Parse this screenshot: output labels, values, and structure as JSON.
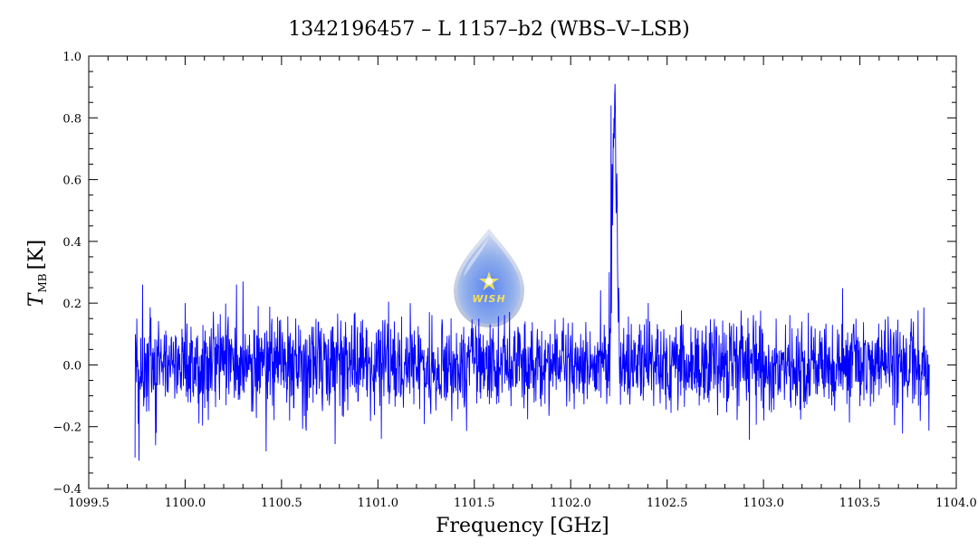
{
  "chart_data": {
    "type": "line",
    "title": "1342196457 – L 1157–b2 (WBS–V–LSB)",
    "xlabel": "Frequency [GHz]",
    "ylabel_main": "T",
    "ylabel_sub": "MB",
    "ylabel_unit": "[K]",
    "xlim": [
      1099.5,
      1104.0
    ],
    "ylim": [
      -0.4,
      1.0
    ],
    "x_ticks": [
      "1099.5",
      "1100.0",
      "1100.5",
      "1101.0",
      "1101.5",
      "1102.0",
      "1102.5",
      "1103.0",
      "1103.5",
      "1104.0"
    ],
    "y_ticks": [
      "−0.4",
      "−0.2",
      "0.0",
      "0.2",
      "0.4",
      "0.6",
      "0.8",
      "1.0"
    ],
    "grid": false,
    "series": [
      {
        "color": "#0000ff",
        "x_start": 1099.74,
        "x_end": 1103.86,
        "noise_rms": 0.075,
        "points": [
          {
            "x": 1099.74,
            "y": -0.3
          },
          {
            "x": 1099.75,
            "y": 0.15
          },
          {
            "x": 1099.76,
            "y": -0.31
          },
          {
            "x": 1099.78,
            "y": 0.26
          },
          {
            "x": 1099.85,
            "y": -0.22
          },
          {
            "x": 1100.0,
            "y": 0.2
          },
          {
            "x": 1100.3,
            "y": 0.27
          },
          {
            "x": 1100.42,
            "y": -0.28
          },
          {
            "x": 1101.5,
            "y": 0.0
          },
          {
            "x": 1101.9,
            "y": 0.0
          },
          {
            "x": 1102.15,
            "y": 0.05
          },
          {
            "x": 1102.2,
            "y": 0.3
          },
          {
            "x": 1102.21,
            "y": 0.84
          },
          {
            "x": 1102.215,
            "y": 0.65
          },
          {
            "x": 1102.22,
            "y": 0.75
          },
          {
            "x": 1102.23,
            "y": 0.91
          },
          {
            "x": 1102.24,
            "y": 0.62
          },
          {
            "x": 1102.25,
            "y": 0.2
          },
          {
            "x": 1102.27,
            "y": 0.02
          },
          {
            "x": 1103.0,
            "y": 0.0
          },
          {
            "x": 1103.86,
            "y": 0.0
          }
        ]
      }
    ]
  },
  "logo": {
    "text": "WISH",
    "icon": "star-icon"
  }
}
